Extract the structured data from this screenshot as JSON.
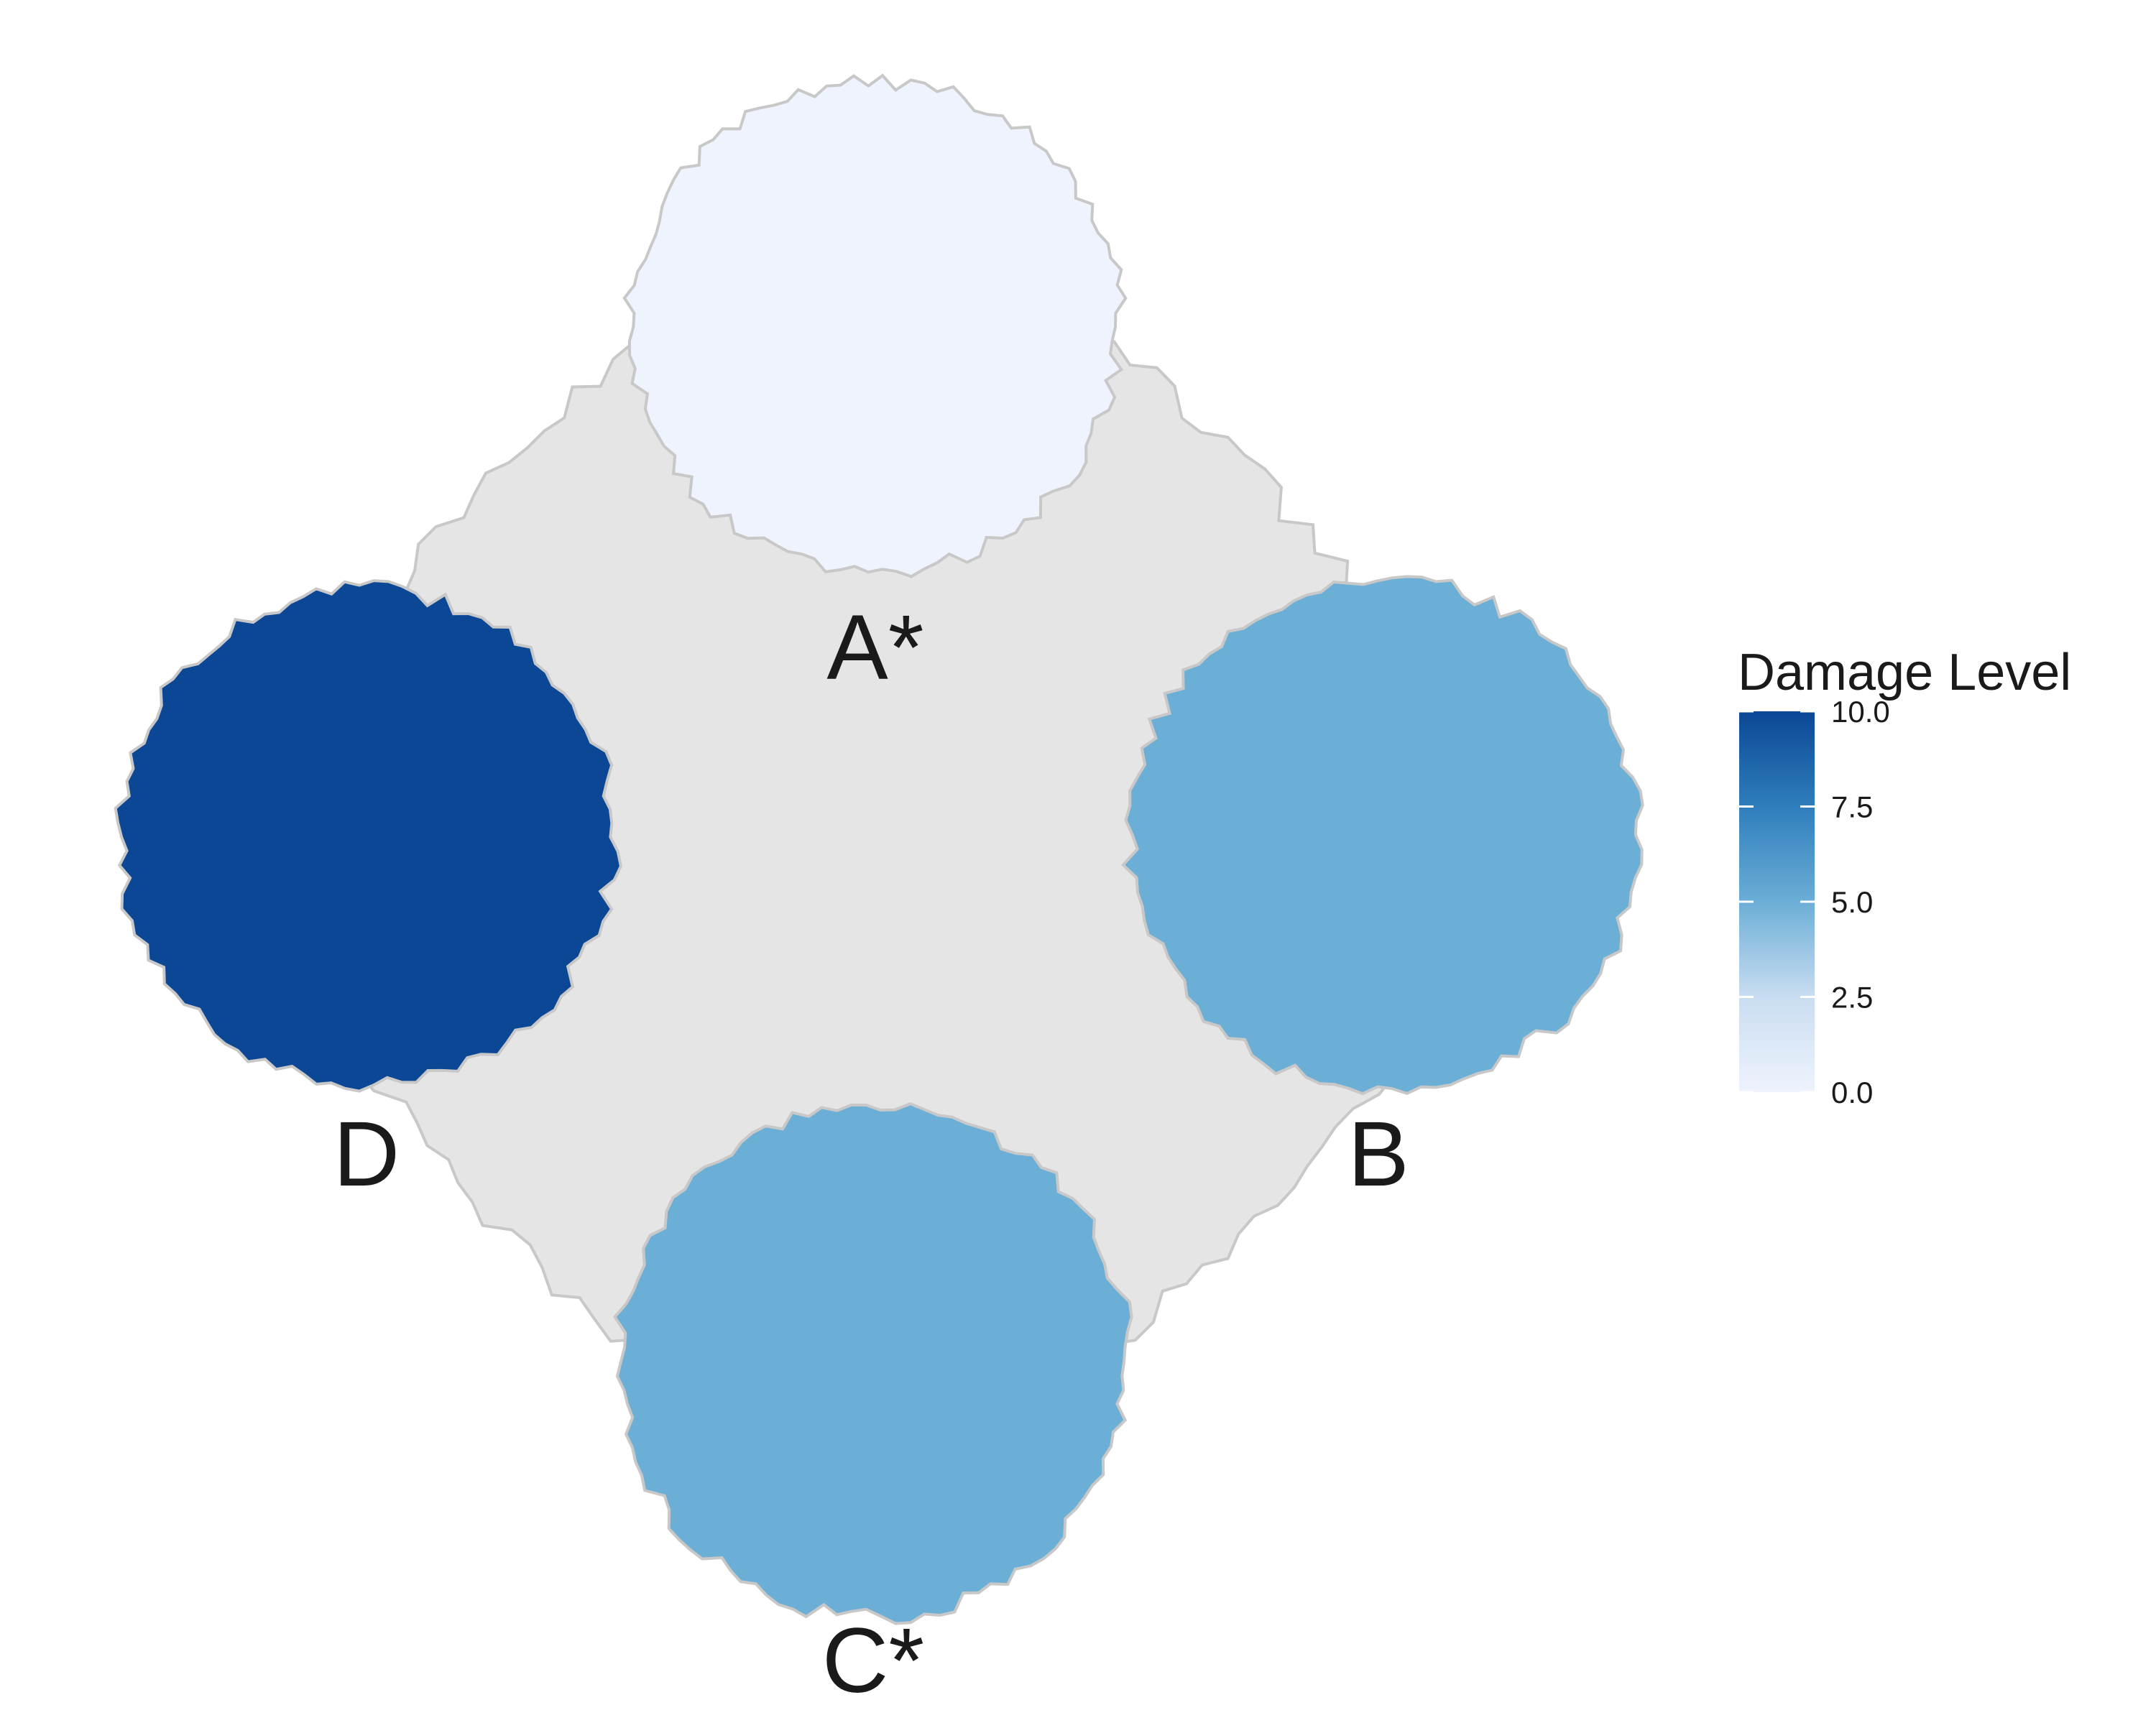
{
  "chart_data": {
    "type": "heatmap",
    "title": "",
    "background_color": "#e5e5e5",
    "outline_color": "#c8c8c8",
    "regions": [
      {
        "label": "A*",
        "value": 0.0
      },
      {
        "label": "B",
        "value": 5.0
      },
      {
        "label": "C*",
        "value": 5.0
      },
      {
        "label": "D",
        "value": 10.0
      }
    ],
    "legend": {
      "title": "Damage Level",
      "range": [
        0,
        10
      ],
      "ticks": [
        0,
        2.5,
        5,
        7.5,
        10
      ],
      "tick_labels": [
        "0.0",
        "2.5",
        "5.0",
        "7.5",
        "10.0"
      ],
      "color_low": "#eef3fd",
      "color_high": "#0b4795",
      "placement": "right"
    }
  }
}
